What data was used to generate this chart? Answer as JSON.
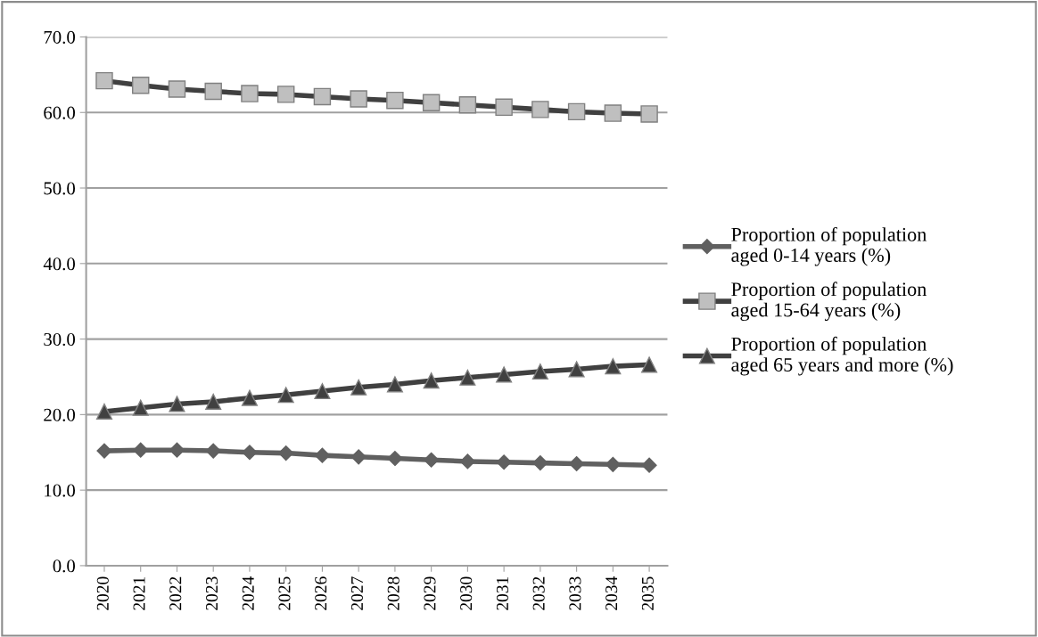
{
  "chart_data": {
    "type": "line",
    "categories": [
      "2020",
      "2021",
      "2022",
      "2023",
      "2024",
      "2025",
      "2026",
      "2027",
      "2028",
      "2029",
      "2030",
      "2031",
      "2032",
      "2033",
      "2034",
      "2035"
    ],
    "series": [
      {
        "name": "Proportion of population aged 0-14 years (%)",
        "color": "#606060",
        "marker": "diamond",
        "values": [
          15.2,
          15.3,
          15.3,
          15.2,
          15.0,
          14.9,
          14.6,
          14.4,
          14.2,
          14.0,
          13.8,
          13.7,
          13.6,
          13.5,
          13.4,
          13.3
        ]
      },
      {
        "name": "Proportion of population aged 15-64 years (%)",
        "color": "#bfbfbf",
        "marker": "square",
        "values": [
          64.2,
          63.6,
          63.1,
          62.8,
          62.5,
          62.4,
          62.1,
          61.8,
          61.6,
          61.3,
          61.0,
          60.7,
          60.4,
          60.1,
          59.9,
          59.8
        ]
      },
      {
        "name": "Proportion of population aged 65 years and more (%)",
        "color": "#404040",
        "marker": "triangle",
        "values": [
          20.4,
          20.9,
          21.4,
          21.7,
          22.2,
          22.6,
          23.1,
          23.6,
          24.0,
          24.5,
          24.9,
          25.3,
          25.7,
          26.0,
          26.4,
          26.6
        ]
      }
    ],
    "ylim": [
      0,
      70
    ],
    "yticks": [
      {
        "value": 0,
        "label": "0.0"
      },
      {
        "value": 10,
        "label": "10.0"
      },
      {
        "value": 20,
        "label": "20.0"
      },
      {
        "value": 30,
        "label": "30.0"
      },
      {
        "value": 40,
        "label": "40.0"
      },
      {
        "value": 50,
        "label": "50.0"
      },
      {
        "value": 60,
        "label": "60.0"
      },
      {
        "value": 70,
        "label": "70.0"
      }
    ],
    "grid": "y",
    "legend": "right",
    "line_style": "solid"
  }
}
